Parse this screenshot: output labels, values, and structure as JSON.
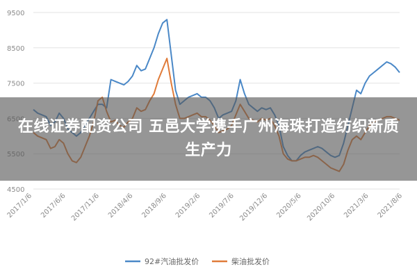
{
  "overlay": {
    "title": "在线证券配资公司 五邑大学携手广州海珠打造纺织新质生产力"
  },
  "chart_data": {
    "type": "line",
    "y_ticks": [
      "9500",
      "8500",
      "7500",
      "6500",
      "5500",
      "4500"
    ],
    "ylim": [
      4500,
      9500
    ],
    "x_ticks": [
      "2017/1/6",
      "2017/6/6",
      "2017/11/6",
      "2018/4/6",
      "2018/9/6",
      "2019/2/6",
      "2019/7/6",
      "2019/12/6",
      "2020/5/6",
      "2020/10/6",
      "2021/3/6",
      "2021/8/6"
    ],
    "grid": "horizontal",
    "legend_position": "bottom",
    "series": [
      {
        "name": "92#汽油批发价",
        "color": "#4a88c7",
        "values": [
          6750,
          6650,
          6600,
          6550,
          6300,
          6400,
          6650,
          6500,
          6200,
          6100,
          6000,
          6100,
          6300,
          6500,
          6700,
          6900,
          6900,
          6800,
          7600,
          7550,
          7500,
          7450,
          7550,
          7700,
          8000,
          7850,
          7900,
          8200,
          8500,
          8900,
          9200,
          9300,
          8300,
          7300,
          6900,
          7000,
          7100,
          7150,
          7200,
          7100,
          7100,
          7000,
          6800,
          6500,
          6600,
          6650,
          6700,
          7000,
          7600,
          7200,
          6900,
          6800,
          6700,
          6800,
          6750,
          6800,
          6600,
          6300,
          5700,
          5450,
          5300,
          5300,
          5450,
          5550,
          5600,
          5650,
          5700,
          5650,
          5550,
          5450,
          5400,
          5450,
          5800,
          6300,
          6800,
          7300,
          7200,
          7500,
          7700,
          7800,
          7900,
          8000,
          8100,
          8050,
          7950,
          7800
        ]
      },
      {
        "name": "柴油批发价",
        "color": "#e07b39",
        "values": [
          6100,
          6000,
          5950,
          5900,
          5650,
          5700,
          5900,
          5800,
          5500,
          5300,
          5250,
          5400,
          5700,
          6000,
          6400,
          7000,
          7100,
          6700,
          6400,
          6450,
          6300,
          6250,
          6400,
          6500,
          6800,
          6700,
          6750,
          7000,
          7200,
          7600,
          7900,
          8200,
          7500,
          6900,
          6500,
          6500,
          6550,
          6600,
          6650,
          6550,
          6550,
          6450,
          6300,
          6100,
          6150,
          6200,
          6300,
          6600,
          6900,
          6700,
          6500,
          6450,
          6400,
          6500,
          6450,
          6500,
          6300,
          6000,
          5500,
          5350,
          5300,
          5300,
          5350,
          5400,
          5400,
          5450,
          5400,
          5300,
          5200,
          5100,
          5050,
          5000,
          5200,
          5600,
          5900,
          6000,
          5900,
          6100,
          6300,
          6400,
          6450,
          6500,
          6550,
          6550,
          6500,
          6450
        ]
      }
    ]
  }
}
